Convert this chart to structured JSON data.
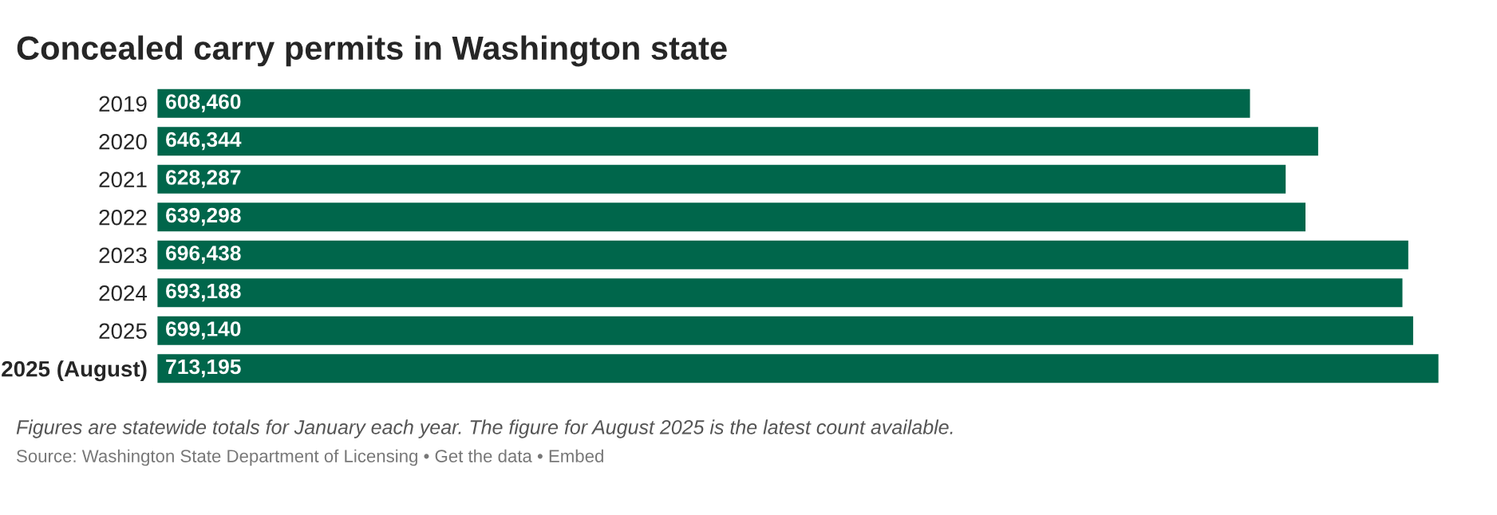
{
  "chart_data": {
    "type": "bar",
    "orientation": "horizontal",
    "title": "Concealed carry permits in Washington state",
    "categories": [
      "2019",
      "2020",
      "2021",
      "2022",
      "2023",
      "2024",
      "2025",
      "2025 (August)"
    ],
    "values": [
      608460,
      646344,
      628287,
      639298,
      696438,
      693188,
      699140,
      713195
    ],
    "color": "#00664b",
    "value_labels": [
      "608,460",
      "646,344",
      "628,287",
      "639,298",
      "696,438",
      "693,188",
      "699,140",
      "713,195"
    ],
    "grid": false,
    "annotations": [
      "Figures are statewide totals for January each year. The figure for August 2025 is the latest count available.",
      "Source: Washington State Department of Licensing • Get the data • Embed"
    ]
  }
}
